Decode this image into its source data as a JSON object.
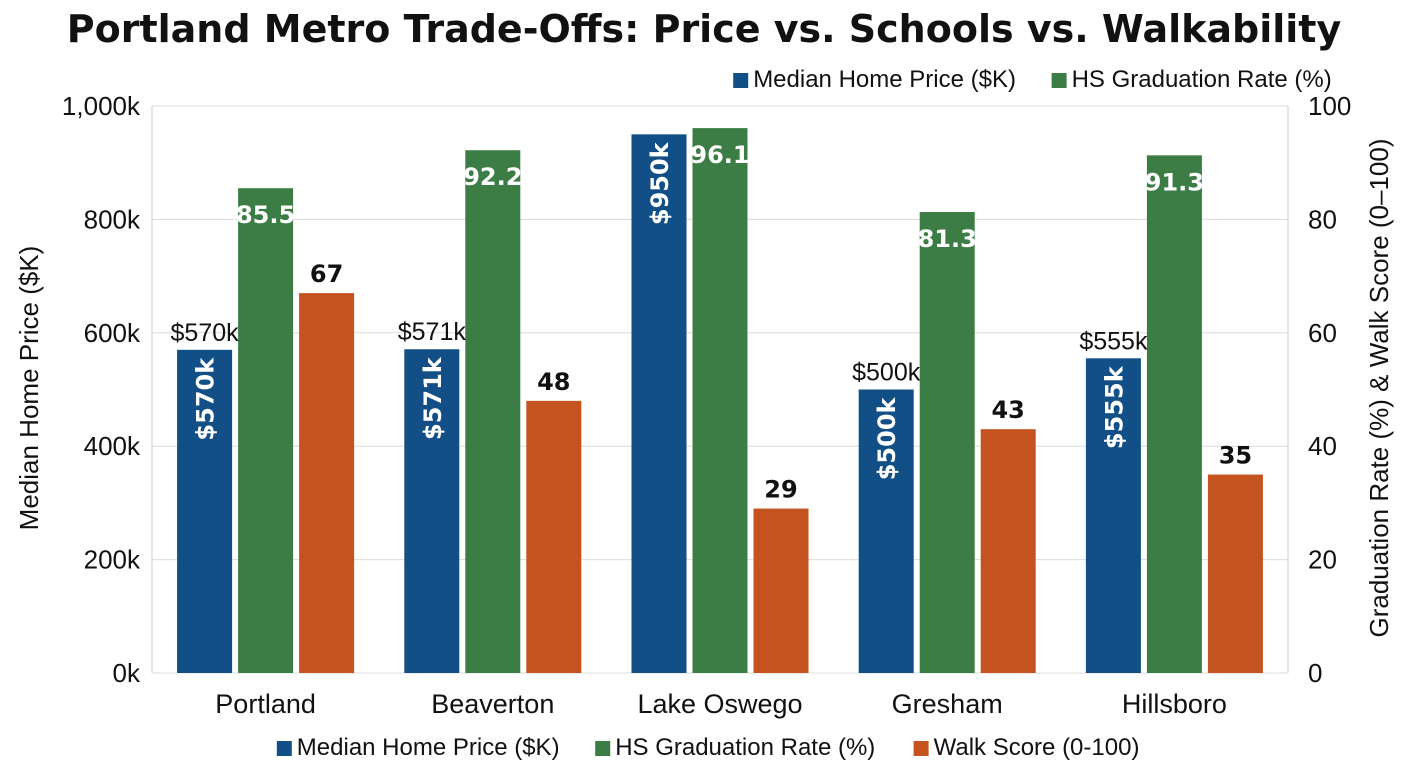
{
  "chart_data": {
    "type": "bar",
    "title": "Portland Metro Trade-Offs: Price vs. Schools vs. Walkability",
    "categories": [
      "Portland",
      "Beaverton",
      "Lake Oswego",
      "Gresham",
      "Hillsboro"
    ],
    "series": [
      {
        "name": "Median Home Price ($K)",
        "axis": "left",
        "color": "#124f86",
        "values": [
          570,
          571,
          950,
          500,
          555
        ],
        "inside_labels": [
          "$570k",
          "$571k",
          "$950k",
          "$500k",
          "$555k"
        ],
        "outside_labels": [
          "$570k",
          "$571k",
          "",
          "$500k",
          "$555k"
        ]
      },
      {
        "name": "HS Graduation Rate (%)",
        "axis": "right",
        "color": "#3b7d44",
        "values": [
          85.5,
          92.2,
          96.1,
          81.3,
          91.3
        ],
        "inside_labels": [
          "85.5",
          "92.2",
          "96.1",
          "81.3",
          "91.3"
        ]
      },
      {
        "name": "Walk Score (0-100)",
        "axis": "right",
        "color": "#c4531f",
        "values": [
          67,
          48,
          29,
          43,
          35
        ],
        "outside_labels": [
          "67",
          "48",
          "29",
          "43",
          "35"
        ]
      }
    ],
    "ylabel": "Median Home Price ($K)",
    "y2label": "Graduation Rate (%) & Walk Score (0–100)",
    "ylim": [
      0,
      1000
    ],
    "y2lim": [
      0,
      100
    ],
    "yticks": [
      "0k",
      "200k",
      "400k",
      "600k",
      "800k",
      "1,000k"
    ],
    "y2ticks": [
      "0",
      "20",
      "40",
      "60",
      "80",
      "100"
    ],
    "grid": true,
    "legend_top": [
      "Median Home Price ($K)",
      "HS Graduation Rate (%)"
    ],
    "legend_bottom": [
      "Median Home Price ($K)",
      "HS Graduation Rate (%)",
      "Walk Score (0-100)"
    ],
    "legend_placement": "top-right and bottom"
  }
}
